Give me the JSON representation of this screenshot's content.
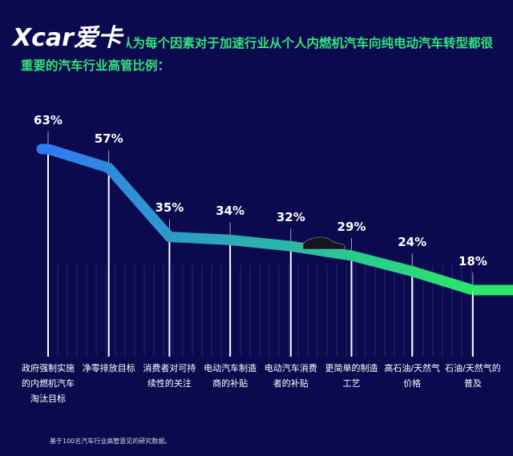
{
  "watermark": "Xcar爱卡",
  "chart_data": {
    "type": "line",
    "title": "在我们的研究中，认为每个因素对于加速行业从个人内燃机汽车向纯电动汽车转型都很重要的汽车行业高管比例：",
    "categories": [
      "政府强制实施的内燃机汽车淘汰目标",
      "净零排放目标",
      "消费者对可持续性的关注",
      "电动汽车制造商的补贴",
      "电动汽车消费者的补贴",
      "更简单的制造工艺",
      "高石油/天然气价格",
      "石油/天然气的普及"
    ],
    "values": [
      63,
      57,
      35,
      34,
      32,
      29,
      24,
      18
    ],
    "value_labels": [
      "63%",
      "57%",
      "35%",
      "34%",
      "32%",
      "29%",
      "24%",
      "18%"
    ],
    "colors": [
      "#2f7bf0",
      "#27e86a"
    ],
    "footnote": "基于100名汽车行业高管意见的研究数据。"
  }
}
